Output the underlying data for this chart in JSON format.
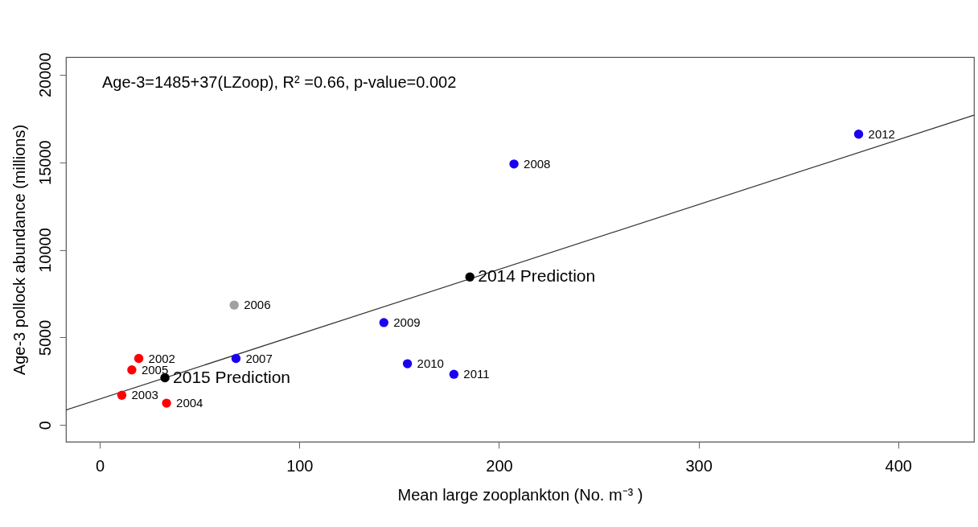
{
  "chart_data": {
    "type": "scatter",
    "xlabel": "Mean large zooplankton (No. m⁻³ )",
    "ylabel": "Age-3 pollock abundance (millions)",
    "annotations": [
      "Age-3=1485+37(LZoop), R² =0.66, p-value=0.002",
      {
        "text": "2002",
        "x": 19.5,
        "y": 3800
      },
      {
        "text": "2003",
        "x": 11,
        "y": 1700
      },
      {
        "text": "2004",
        "x": 33.4,
        "y": 1250
      },
      {
        "text": "2005",
        "x": 16,
        "y": 3150
      },
      {
        "text": "2006",
        "x": 67.3,
        "y": 6850
      },
      {
        "text": "2007",
        "x": 68.2,
        "y": 3800
      },
      {
        "text": "2008",
        "x": 207.5,
        "y": 14900
      },
      {
        "text": "2009",
        "x": 142.3,
        "y": 5850
      },
      {
        "text": "2010",
        "x": 154.1,
        "y": 3500
      },
      {
        "text": "2011",
        "x": 177.4,
        "y": 2900
      },
      {
        "text": "2012",
        "x": 380.2,
        "y": 16600
      },
      {
        "text": "2014 Prediction",
        "x": 185.4,
        "y": 8450
      },
      {
        "text": "2015 Prediction",
        "x": 32.6,
        "y": 2700
      }
    ],
    "xlim": [
      -17,
      438
    ],
    "xticks": [
      0,
      100,
      200,
      300,
      400
    ],
    "ylim": [
      -950,
      21000
    ],
    "yticks": [
      0,
      5000,
      10000,
      15000,
      20000
    ],
    "grid": false,
    "marker": "circle",
    "series": [
      {
        "type": "line",
        "color": "#333333",
        "marker": "none",
        "x": [
          -17,
          438
        ],
        "values": [
          860,
          17690
        ]
      },
      {
        "color": "#ff0000",
        "x": [
          19.5,
          11,
          33.4,
          16
        ],
        "values": [
          3800,
          1700,
          1250,
          3150
        ]
      },
      {
        "color": "#a0a0a0",
        "x": [
          67.3
        ],
        "values": [
          6850
        ]
      },
      {
        "color": "#1a00f0",
        "x": [
          68.2,
          207.5,
          142.3,
          154.1,
          177.4,
          380.2
        ],
        "values": [
          3800,
          14900,
          5850,
          3500,
          2900,
          16600
        ]
      },
      {
        "color": "#000000",
        "x": [
          185.4,
          32.6
        ],
        "values": [
          8450,
          2700
        ]
      }
    ]
  }
}
